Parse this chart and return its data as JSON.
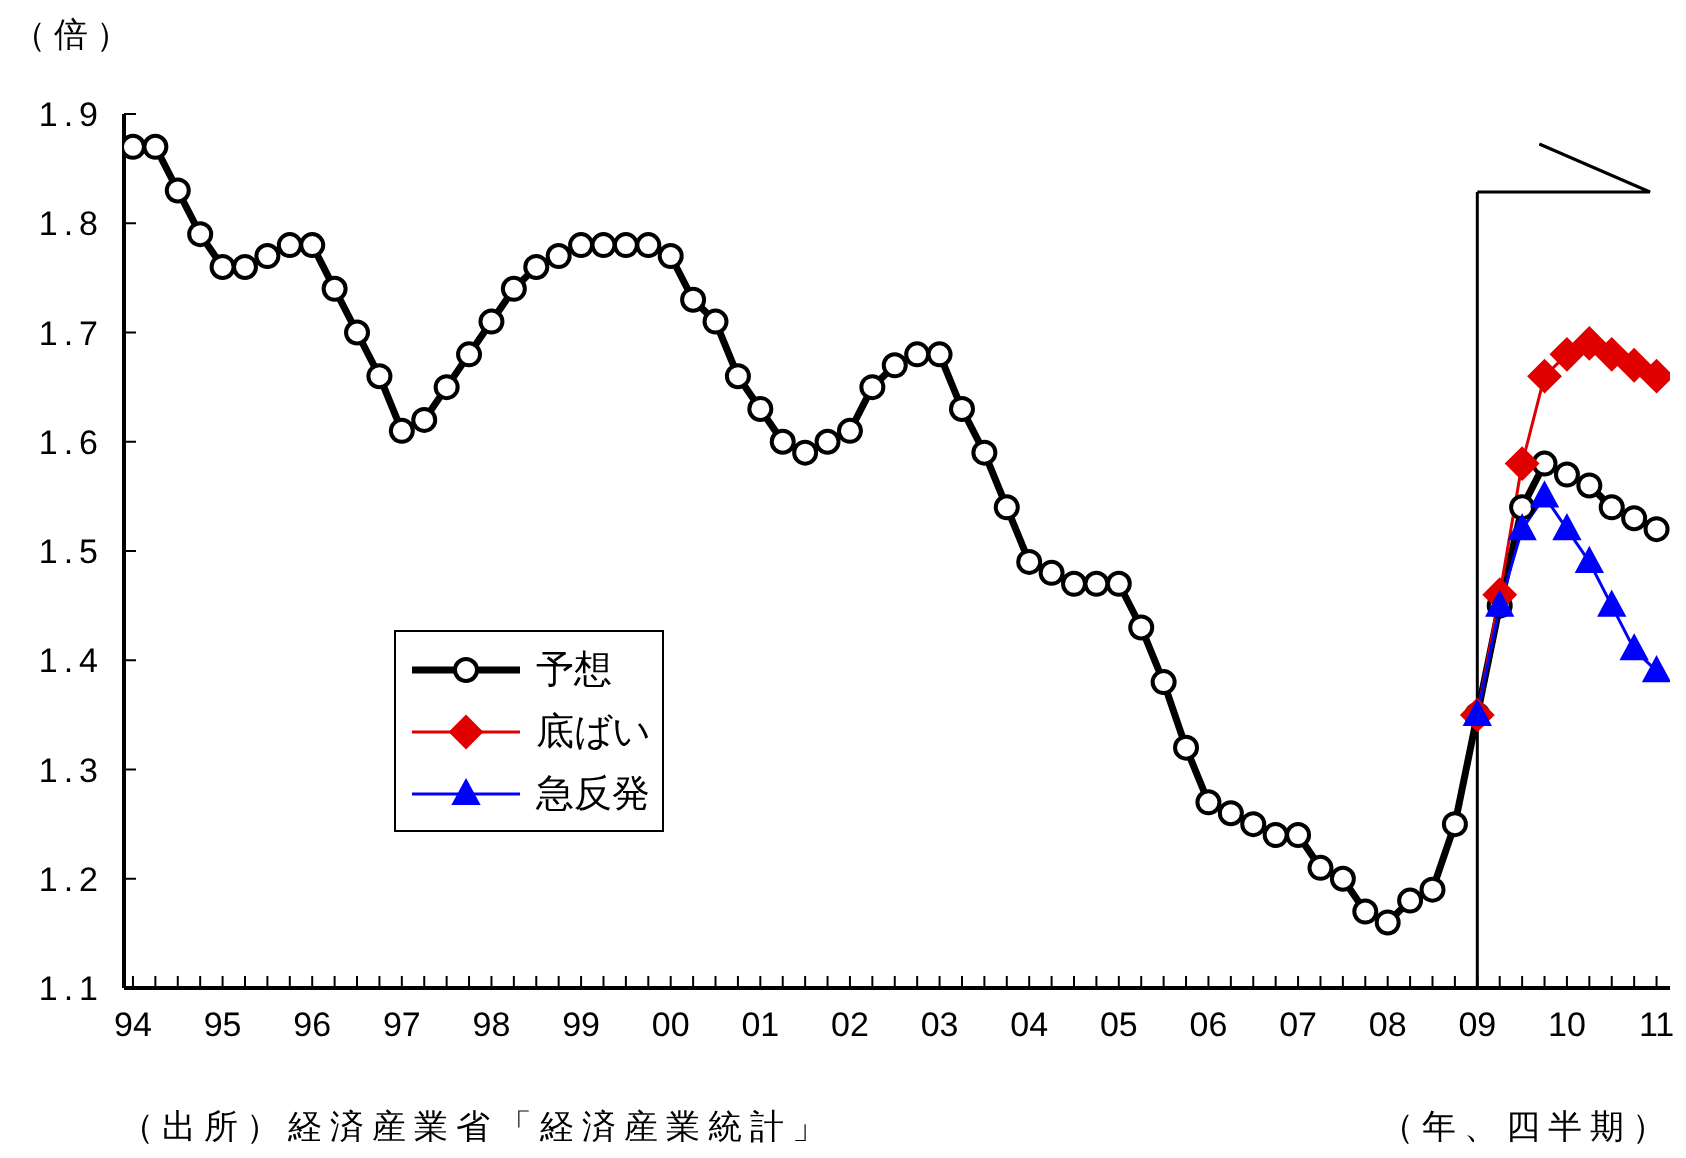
{
  "chart_data": {
    "type": "line",
    "ylabel": "（倍）",
    "annotations": [
      "（出所）経済産業省「経済産業統計」",
      "（年、四半期）"
    ],
    "x": [
      1994,
      1994.25,
      1994.5,
      1994.75,
      1995,
      1995.25,
      1995.5,
      1995.75,
      1996,
      1996.25,
      1996.5,
      1996.75,
      1997,
      1997.25,
      1997.5,
      1997.75,
      1998,
      1998.25,
      1998.5,
      1998.75,
      1999,
      1999.25,
      1999.5,
      1999.75,
      2000,
      2000.25,
      2000.5,
      2000.75,
      2001,
      2001.25,
      2001.5,
      2001.75,
      2002,
      2002.25,
      2002.5,
      2002.75,
      2003,
      2003.25,
      2003.5,
      2003.75,
      2004,
      2004.25,
      2004.5,
      2004.75,
      2005,
      2005.25,
      2005.5,
      2005.75,
      2006,
      2006.25,
      2006.5,
      2006.75,
      2007,
      2007.25,
      2007.5,
      2007.75,
      2008,
      2008.25,
      2008.5,
      2008.75,
      2009,
      2009.25,
      2009.5,
      2009.75,
      2010,
      2010.25,
      2010.5,
      2010.75,
      2011
    ],
    "series": [
      {
        "name": "予想",
        "color": "#000000",
        "marker": "circle",
        "values": [
          1.87,
          1.87,
          1.83,
          1.79,
          1.76,
          1.76,
          1.77,
          1.78,
          1.78,
          1.74,
          1.7,
          1.66,
          1.61,
          1.62,
          1.65,
          1.68,
          1.71,
          1.74,
          1.76,
          1.77,
          1.78,
          1.78,
          1.78,
          1.78,
          1.77,
          1.73,
          1.71,
          1.66,
          1.63,
          1.6,
          1.59,
          1.6,
          1.61,
          1.65,
          1.67,
          1.68,
          1.68,
          1.63,
          1.59,
          1.54,
          1.49,
          1.48,
          1.47,
          1.47,
          1.47,
          1.43,
          1.38,
          1.32,
          1.27,
          1.26,
          1.25,
          1.24,
          1.24,
          1.21,
          1.2,
          1.17,
          1.16,
          1.18,
          1.19,
          1.25,
          1.35,
          1.45,
          1.54,
          1.58,
          1.57,
          1.56,
          1.54,
          1.53,
          1.52
        ]
      },
      {
        "name": "底ばい",
        "color": "#e00000",
        "marker": "diamond",
        "x": [
          2009,
          2009.25,
          2009.5,
          2009.75,
          2010,
          2010.25,
          2010.5,
          2010.75,
          2011
        ],
        "values": [
          1.35,
          1.46,
          1.58,
          1.66,
          1.68,
          1.69,
          1.68,
          1.67,
          1.66
        ]
      },
      {
        "name": "急反発",
        "color": "#0000ff",
        "marker": "triangle",
        "x": [
          2009,
          2009.25,
          2009.5,
          2009.75,
          2010,
          2010.25,
          2010.5,
          2010.75,
          2011
        ],
        "values": [
          1.35,
          1.45,
          1.52,
          1.55,
          1.52,
          1.49,
          1.45,
          1.41,
          1.39
        ]
      }
    ],
    "xlim": [
      1993.9,
      2011.15
    ],
    "xticks": [
      {
        "value": 1994,
        "label": "94"
      },
      {
        "value": 1994.25,
        "label": null
      },
      {
        "value": 1994.5,
        "label": null
      },
      {
        "value": 1994.75,
        "label": null
      },
      {
        "value": 1995,
        "label": "95"
      },
      {
        "value": 1995.25,
        "label": null
      },
      {
        "value": 1995.5,
        "label": null
      },
      {
        "value": 1995.75,
        "label": null
      },
      {
        "value": 1996,
        "label": "96"
      },
      {
        "value": 1996.25,
        "label": null
      },
      {
        "value": 1996.5,
        "label": null
      },
      {
        "value": 1996.75,
        "label": null
      },
      {
        "value": 1997,
        "label": "97"
      },
      {
        "value": 1997.25,
        "label": null
      },
      {
        "value": 1997.5,
        "label": null
      },
      {
        "value": 1997.75,
        "label": null
      },
      {
        "value": 1998,
        "label": "98"
      },
      {
        "value": 1998.25,
        "label": null
      },
      {
        "value": 1998.5,
        "label": null
      },
      {
        "value": 1998.75,
        "label": null
      },
      {
        "value": 1999,
        "label": "99"
      },
      {
        "value": 1999.25,
        "label": null
      },
      {
        "value": 1999.5,
        "label": null
      },
      {
        "value": 1999.75,
        "label": null
      },
      {
        "value": 2000,
        "label": "00"
      },
      {
        "value": 2000.25,
        "label": null
      },
      {
        "value": 2000.5,
        "label": null
      },
      {
        "value": 2000.75,
        "label": null
      },
      {
        "value": 2001,
        "label": "01"
      },
      {
        "value": 2001.25,
        "label": null
      },
      {
        "value": 2001.5,
        "label": null
      },
      {
        "value": 2001.75,
        "label": null
      },
      {
        "value": 2002,
        "label": "02"
      },
      {
        "value": 2002.25,
        "label": null
      },
      {
        "value": 2002.5,
        "label": null
      },
      {
        "value": 2002.75,
        "label": null
      },
      {
        "value": 2003,
        "label": "03"
      },
      {
        "value": 2003.25,
        "label": null
      },
      {
        "value": 2003.5,
        "label": null
      },
      {
        "value": 2003.75,
        "label": null
      },
      {
        "value": 2004,
        "label": "04"
      },
      {
        "value": 2004.25,
        "label": null
      },
      {
        "value": 2004.5,
        "label": null
      },
      {
        "value": 2004.75,
        "label": null
      },
      {
        "value": 2005,
        "label": "05"
      },
      {
        "value": 2005.25,
        "label": null
      },
      {
        "value": 2005.5,
        "label": null
      },
      {
        "value": 2005.75,
        "label": null
      },
      {
        "value": 2006,
        "label": "06"
      },
      {
        "value": 2006.25,
        "label": null
      },
      {
        "value": 2006.5,
        "label": null
      },
      {
        "value": 2006.75,
        "label": null
      },
      {
        "value": 2007,
        "label": "07"
      },
      {
        "value": 2007.25,
        "label": null
      },
      {
        "value": 2007.5,
        "label": null
      },
      {
        "value": 2007.75,
        "label": null
      },
      {
        "value": 2008,
        "label": "08"
      },
      {
        "value": 2008.25,
        "label": null
      },
      {
        "value": 2008.5,
        "label": null
      },
      {
        "value": 2008.75,
        "label": null
      },
      {
        "value": 2009,
        "label": "09"
      },
      {
        "value": 2009.25,
        "label": null
      },
      {
        "value": 2009.5,
        "label": null
      },
      {
        "value": 2009.75,
        "label": null
      },
      {
        "value": 2010,
        "label": "10"
      },
      {
        "value": 2010.25,
        "label": null
      },
      {
        "value": 2010.5,
        "label": null
      },
      {
        "value": 2010.75,
        "label": null
      },
      {
        "value": 2011,
        "label": "11"
      }
    ],
    "ylim": [
      1.1,
      1.9
    ],
    "yticks": [
      1.1,
      1.2,
      1.3,
      1.4,
      1.5,
      1.6,
      1.7,
      1.8,
      1.9
    ],
    "ref_lines": [
      {
        "axis": "x",
        "value": 2009,
        "color": "#000000"
      }
    ],
    "grid": false,
    "legend": "left"
  }
}
